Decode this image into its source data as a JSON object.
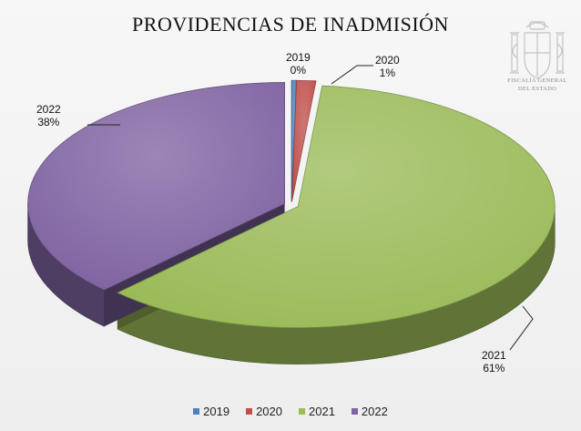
{
  "chart_data": {
    "type": "pie",
    "title": "PROVIDENCIAS DE INADMISIÓN",
    "categories": [
      "2019",
      "2020",
      "2021",
      "2022"
    ],
    "values": [
      0.3,
      1.2,
      60.9,
      37.6
    ],
    "data_labels": [
      {
        "category": "2019",
        "value": "0%"
      },
      {
        "category": "2020",
        "value": "1%"
      },
      {
        "category": "2021",
        "value": "61%"
      },
      {
        "category": "2022",
        "value": "38%"
      }
    ],
    "legend_position": "bottom",
    "three_d": true
  },
  "colors": {
    "2019": "#4f81bd",
    "2020": "#c0504d",
    "2021": "#9bbb59",
    "2022": "#8064a2"
  },
  "emblem": {
    "icon": "coat-of-arms-icon",
    "caption_line1": "FISCALÍA GENERAL",
    "caption_line2": "DEL ESTADO"
  }
}
